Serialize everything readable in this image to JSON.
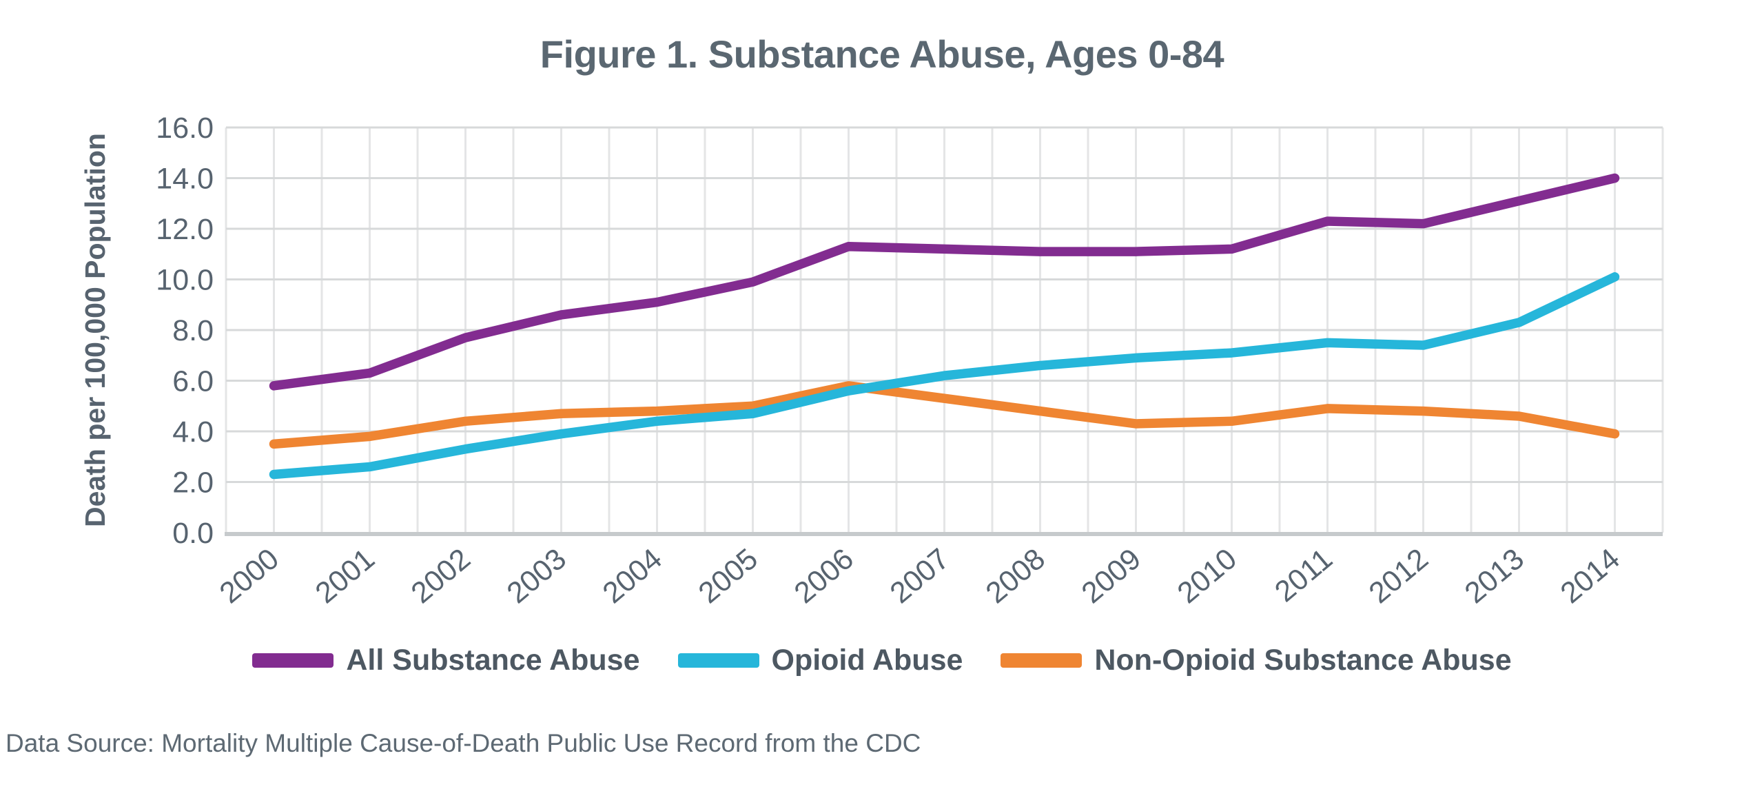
{
  "source_note": "Data Source: Mortality Multiple Cause-of-Death Public Use Record from the CDC",
  "colors": {
    "background": "#ffffff",
    "title_text": "#5a6771",
    "axis_text": "#57636f",
    "legend_text": "#4d5862",
    "source_text": "#5d6973",
    "grid_vertical": "#e4e5e6",
    "grid_horizontal": "#d7d9da",
    "axis_line": "#c6cacc",
    "series_purple": "#822c90",
    "series_cyan": "#26b6da",
    "series_orange": "#ef8532"
  },
  "chart_data": {
    "type": "line",
    "title": "Figure 1. Substance Abuse, Ages 0-84",
    "xlabel": "",
    "ylabel": "Death per 100,000 Population",
    "ylim": [
      0,
      16
    ],
    "ytick_step": 2,
    "ytick_labels": [
      "0.0",
      "2.0",
      "4.0",
      "6.0",
      "8.0",
      "10.0",
      "12.0",
      "14.0",
      "16.0"
    ],
    "grid": "light vertical gridlines at every half-year interval; light horizontal gridlines every 2.0 units",
    "legend_position": "bottom",
    "x_tick_rotation_deg": -40,
    "categories": [
      "2000",
      "2001",
      "2002",
      "2003",
      "2004",
      "2005",
      "2006",
      "2007",
      "2008",
      "2009",
      "2010",
      "2011",
      "2012",
      "2013",
      "2014"
    ],
    "series": [
      {
        "name": "All Substance Abuse",
        "color": "#822c90",
        "values": [
          5.8,
          6.3,
          7.7,
          8.6,
          9.1,
          9.9,
          11.3,
          11.2,
          11.1,
          11.1,
          11.2,
          12.3,
          12.2,
          13.1,
          14.0
        ]
      },
      {
        "name": "Opioid Abuse",
        "color": "#26b6da",
        "values": [
          2.3,
          2.6,
          3.3,
          3.9,
          4.4,
          4.7,
          5.6,
          6.2,
          6.6,
          6.9,
          7.1,
          7.5,
          7.4,
          8.3,
          10.1
        ]
      },
      {
        "name": "Non-Opioid Substance Abuse",
        "color": "#ef8532",
        "values": [
          3.5,
          3.8,
          4.4,
          4.7,
          4.8,
          5.0,
          5.8,
          5.3,
          4.8,
          4.3,
          4.4,
          4.9,
          4.8,
          4.6,
          3.9
        ]
      }
    ]
  }
}
